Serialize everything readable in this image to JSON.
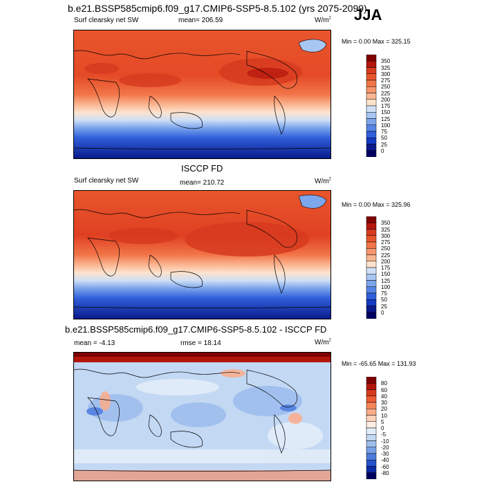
{
  "header": {
    "title": "b.e21.BSSP585cmip6.f09_g17.CMIP6-SSP5-8.5.102 (yrs 2075-2099)",
    "season": "JJA"
  },
  "panels": [
    {
      "id": "model",
      "left_label": "Surf clearsky net SW",
      "center_label": "mean= 206.59",
      "units": "W/m",
      "units_sup": "2",
      "minmax": "Min =   0.00 Max = 325.15",
      "colorbar_labels": [
        "350",
        "325",
        "300",
        "275",
        "250",
        "225",
        "200",
        "175",
        "150",
        "125",
        "100",
        "75",
        "50",
        "25",
        "0"
      ],
      "colorbar_colors": [
        "#7f0000",
        "#b3150d",
        "#d73a1f",
        "#e8562c",
        "#f27548",
        "#f7956c",
        "#fbb692",
        "#fde2cc",
        "#cfe0f6",
        "#a8c6f2",
        "#7ea6ec",
        "#5584e4",
        "#2f5fda",
        "#1639c3",
        "#0a1a8c",
        "#000060"
      ]
    },
    {
      "id": "obs",
      "mid_title": "ISCCP FD",
      "left_label": "Surf clearsky net SW",
      "center_label": "mean= 210.72",
      "units": "W/m",
      "units_sup": "2",
      "minmax": "Min =   0.00 Max = 325.96",
      "colorbar_labels": [
        "350",
        "325",
        "300",
        "275",
        "250",
        "225",
        "200",
        "175",
        "150",
        "125",
        "100",
        "75",
        "50",
        "25",
        "0"
      ],
      "colorbar_colors": [
        "#7f0000",
        "#b3150d",
        "#d73a1f",
        "#e8562c",
        "#f27548",
        "#f7956c",
        "#fbb692",
        "#fde2cc",
        "#cfe0f6",
        "#a8c6f2",
        "#7ea6ec",
        "#5584e4",
        "#2f5fda",
        "#1639c3",
        "#0a1a8c",
        "#000060"
      ]
    },
    {
      "id": "diff",
      "mid_title": "b.e21.BSSP585cmip6.f09_g17.CMIP6-SSP5-8.5.102 - ISCCP FD",
      "left_label": "mean =  -4.13",
      "center_label": "rmse =  18.14",
      "units": "W/m",
      "units_sup": "2",
      "minmax": "Min = -65.65 Max = 131.93",
      "colorbar_labels": [
        "80",
        "60",
        "40",
        "30",
        "20",
        "10",
        "5",
        "0",
        "-5",
        "-10",
        "-20",
        "-30",
        "-40",
        "-60",
        "-80"
      ],
      "colorbar_colors": [
        "#7f0000",
        "#b3150d",
        "#d73a1f",
        "#ee5b33",
        "#f6855a",
        "#fbab88",
        "#fdd2bb",
        "#fdeee4",
        "#e3edf9",
        "#c3d8f3",
        "#9ebeee",
        "#769fe7",
        "#4c7bdd",
        "#2552cc",
        "#0c2aa3",
        "#000060"
      ]
    }
  ]
}
